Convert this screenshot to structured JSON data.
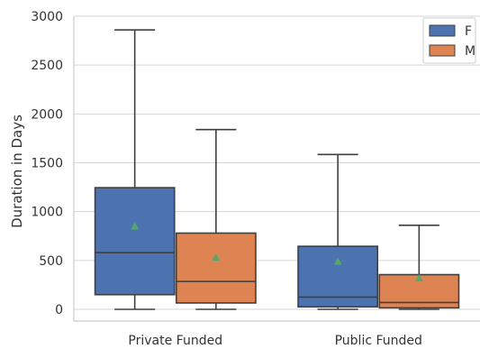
{
  "chart_data": {
    "type": "box",
    "title": "",
    "xlabel": "",
    "ylabel": "Duration in Days",
    "ylim": [
      -120,
      3000
    ],
    "yticks": [
      0,
      500,
      1000,
      1500,
      2000,
      2500,
      3000
    ],
    "grid": "horizontal",
    "legend_position": "top-right",
    "categories": [
      "Private Funded",
      "Public Funded"
    ],
    "series": [
      {
        "name": "F",
        "color": "#4C72B0",
        "boxes": [
          {
            "category": "Private Funded",
            "whisker_low": 0,
            "q1": 150,
            "median": 580,
            "q3": 1245,
            "whisker_high": 2860,
            "mean": 850
          },
          {
            "category": "Public Funded",
            "whisker_low": 0,
            "q1": 25,
            "median": 125,
            "q3": 645,
            "whisker_high": 1585,
            "mean": 490
          }
        ]
      },
      {
        "name": "M",
        "color": "#DD8452",
        "boxes": [
          {
            "category": "Private Funded",
            "whisker_low": 0,
            "q1": 65,
            "median": 285,
            "q3": 780,
            "whisker_high": 1840,
            "mean": 530
          },
          {
            "category": "Public Funded",
            "whisker_low": 0,
            "q1": 15,
            "median": 70,
            "q3": 355,
            "whisker_high": 860,
            "mean": 320
          }
        ]
      }
    ],
    "mean_marker": {
      "shape": "triangle",
      "color": "#55A868"
    }
  }
}
